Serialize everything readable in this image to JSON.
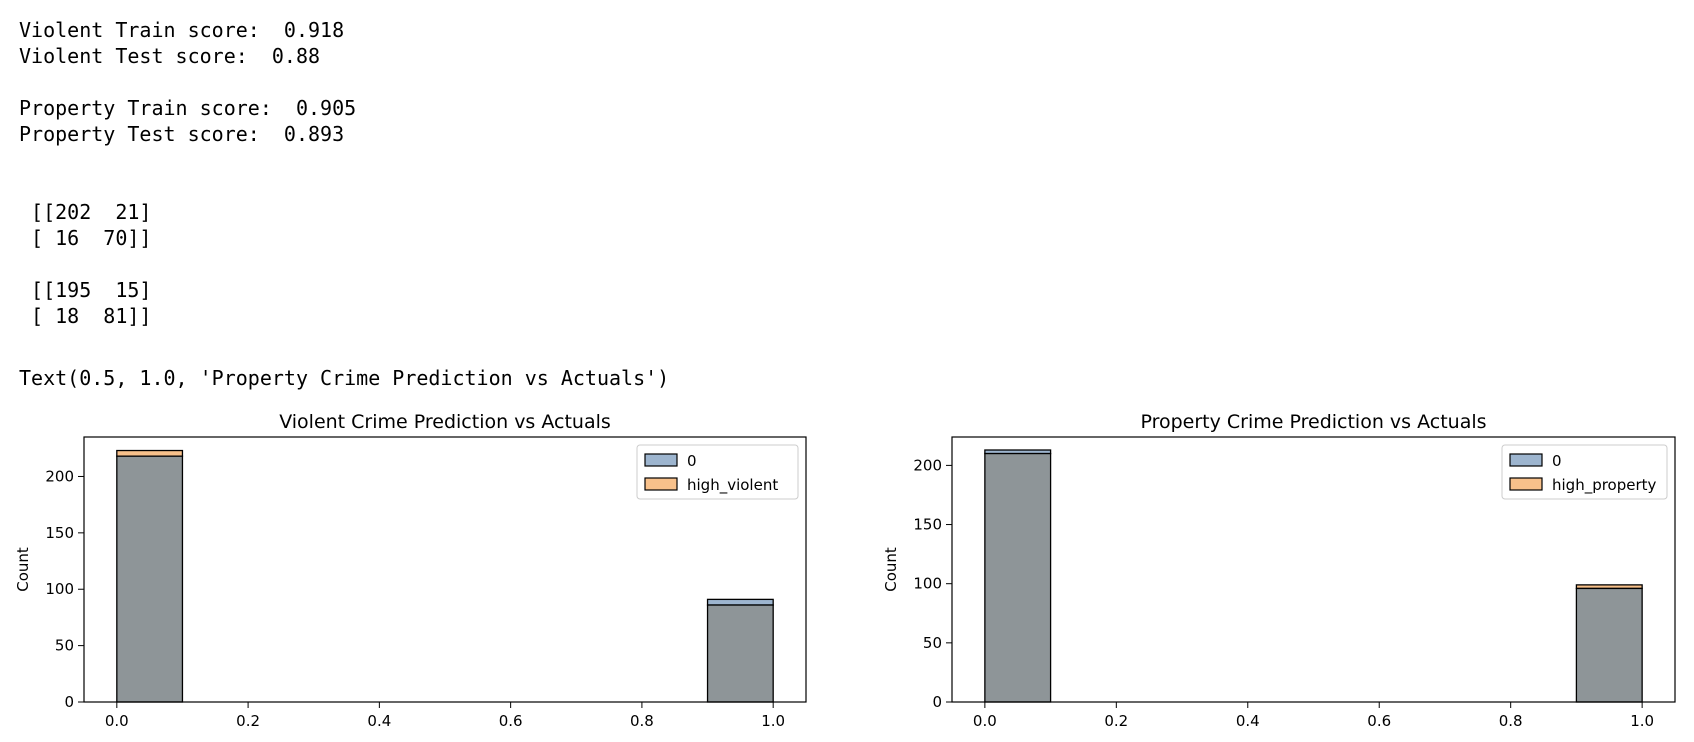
{
  "output": {
    "scores": [
      "Violent Train score:  0.918",
      "Violent Test score:  0.88",
      "",
      "Property Train score:  0.905",
      "Property Test score:  0.893"
    ],
    "matrices": [
      " [[202  21]",
      " [ 16  70]]",
      "",
      " [[195  15]",
      " [ 18  81]]"
    ],
    "repr": "Text(0.5, 1.0, 'Property Crime Prediction vs Actuals')"
  },
  "colors": {
    "series0": "#4c78a8",
    "series1": "#f28e2b",
    "overlap": "#8e9598",
    "edge": "#000000"
  },
  "chart_data": [
    {
      "type": "bar",
      "title": "Violent Crime Prediction vs Actuals",
      "xlabel": "",
      "ylabel": "Count",
      "xlim": [
        -0.05,
        1.05
      ],
      "ylim": [
        0,
        235
      ],
      "xticks": [
        "0.0",
        "0.2",
        "0.4",
        "0.6",
        "0.8",
        "1.0"
      ],
      "yticks": [
        "0",
        "50",
        "100",
        "150",
        "200"
      ],
      "bins": [
        [
          0.0,
          0.1
        ],
        [
          0.9,
          1.0
        ]
      ],
      "series": [
        {
          "name": "0",
          "values": [
            218,
            91
          ]
        },
        {
          "name": "high_violent",
          "values": [
            223,
            86
          ]
        }
      ],
      "legend": "top-right"
    },
    {
      "type": "bar",
      "title": "Property Crime Prediction vs Actuals",
      "xlabel": "",
      "ylabel": "Count",
      "xlim": [
        -0.05,
        1.05
      ],
      "ylim": [
        0,
        224
      ],
      "xticks": [
        "0.0",
        "0.2",
        "0.4",
        "0.6",
        "0.8",
        "1.0"
      ],
      "yticks": [
        "0",
        "50",
        "100",
        "150",
        "200"
      ],
      "bins": [
        [
          0.0,
          0.1
        ],
        [
          0.9,
          1.0
        ]
      ],
      "series": [
        {
          "name": "0",
          "values": [
            213,
            96
          ]
        },
        {
          "name": "high_property",
          "values": [
            210,
            99
          ]
        }
      ],
      "legend": "top-right"
    }
  ]
}
